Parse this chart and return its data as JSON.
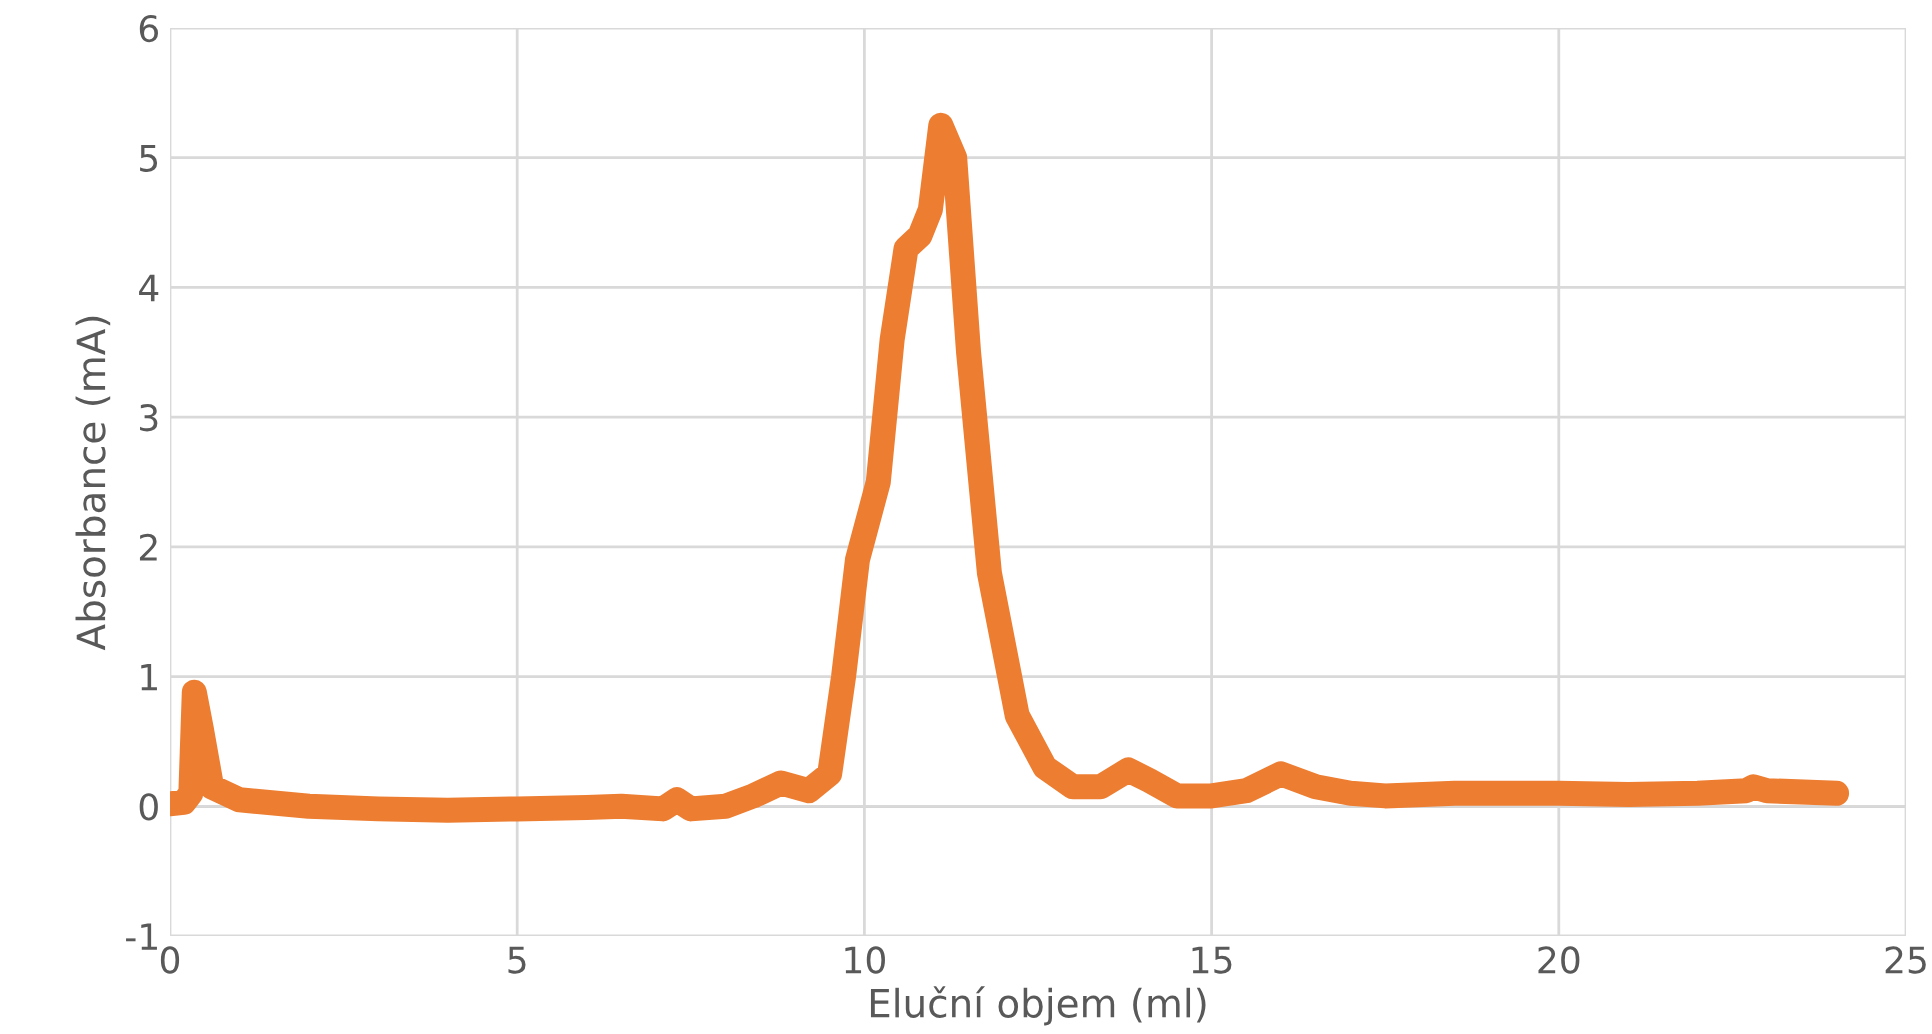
{
  "chart_data": {
    "type": "line",
    "xlabel": "Eluční objem (ml)",
    "ylabel": "Absorbance (mA)",
    "xlim": [
      0,
      25
    ],
    "xticks": [
      0,
      5,
      10,
      15,
      20,
      25
    ],
    "ylim": [
      -1,
      6
    ],
    "yticks": [
      -1,
      0,
      1,
      2,
      3,
      4,
      5,
      6
    ],
    "grid": true,
    "legend": false,
    "series": [
      {
        "color": "#ed7d31",
        "x": [
          0,
          0.2,
          0.3,
          0.35,
          0.45,
          0.6,
          1.0,
          2,
          3,
          4,
          5,
          6,
          6.5,
          7.1,
          7.3,
          7.5,
          8,
          8.4,
          8.8,
          9.2,
          9.5,
          9.7,
          9.9,
          10.2,
          10.4,
          10.6,
          10.8,
          10.95,
          11.1,
          11.3,
          11.5,
          11.8,
          12.2,
          12.6,
          13.0,
          13.4,
          13.8,
          14.1,
          14.5,
          15,
          15.5,
          16.0,
          16.5,
          17,
          17.5,
          18.5,
          20,
          21,
          22,
          22.7,
          22.8,
          23,
          24
        ],
        "values": [
          0.02,
          0.03,
          0.1,
          0.88,
          0.6,
          0.15,
          0.05,
          0.0,
          -0.02,
          -0.03,
          -0.02,
          -0.01,
          0.0,
          -0.02,
          0.05,
          -0.02,
          0.0,
          0.08,
          0.18,
          0.12,
          0.25,
          1.0,
          1.9,
          2.5,
          3.6,
          4.3,
          4.4,
          4.6,
          5.25,
          5.0,
          3.5,
          1.8,
          0.7,
          0.3,
          0.15,
          0.15,
          0.28,
          0.2,
          0.08,
          0.08,
          0.12,
          0.25,
          0.15,
          0.1,
          0.08,
          0.1,
          0.1,
          0.09,
          0.1,
          0.12,
          0.15,
          0.12,
          0.1
        ]
      }
    ]
  }
}
